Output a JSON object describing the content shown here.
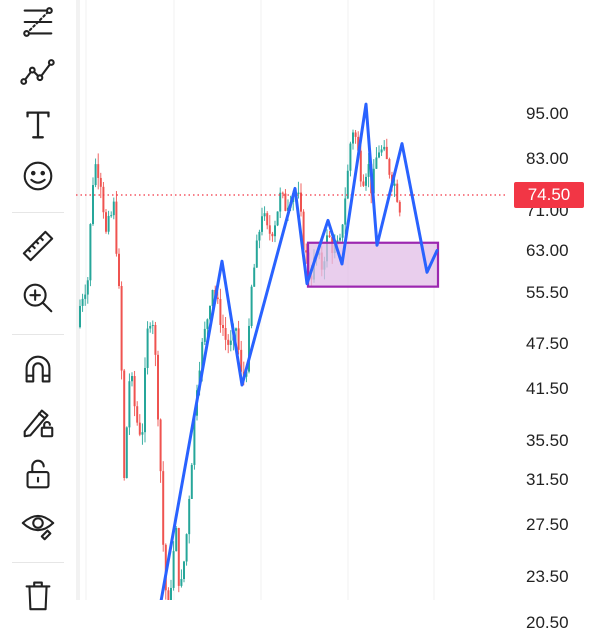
{
  "toolbar": {
    "items": [
      {
        "name": "fib-retracement-icon",
        "y": 20
      },
      {
        "name": "trend-line-icon",
        "y": 72
      },
      {
        "name": "text-icon",
        "y": 124
      },
      {
        "name": "emoji-icon",
        "y": 176
      },
      {
        "name": "ruler-icon",
        "y": 246
      },
      {
        "name": "zoom-in-icon",
        "y": 298
      },
      {
        "name": "magnet-icon",
        "y": 370
      },
      {
        "name": "lock-drawing-icon",
        "y": 422
      },
      {
        "name": "unlock-icon",
        "y": 474
      },
      {
        "name": "eye-icon",
        "y": 524
      },
      {
        "name": "trash-icon",
        "y": 590
      }
    ]
  },
  "chart_data": {
    "type": "candlestick",
    "price_scale": "log",
    "y_ticks": [
      "95.00",
      "83.00",
      "71.00",
      "63.00",
      "55.50",
      "47.50",
      "41.50",
      "35.50",
      "31.50",
      "27.50",
      "23.50",
      "20.50"
    ],
    "y_tick_values": [
      95,
      83,
      71,
      63,
      55.5,
      47.5,
      41.5,
      35.5,
      31.5,
      27.5,
      23.5,
      20.5
    ],
    "current_price": "74.50",
    "current_price_value": 74.5,
    "colors": {
      "up": "#26a69a",
      "down": "#ef5350",
      "drawing": "#2962ff",
      "zone_fill": "#e1bee7",
      "zone_border": "#9c27b0",
      "price_line": "#f23645"
    },
    "zigzag_drawing": [
      20.8,
      61,
      42,
      76,
      57,
      69,
      60.5,
      98,
      64,
      87,
      59,
      63
    ],
    "zone": {
      "top": 64.5,
      "bottom": 56.5
    }
  }
}
